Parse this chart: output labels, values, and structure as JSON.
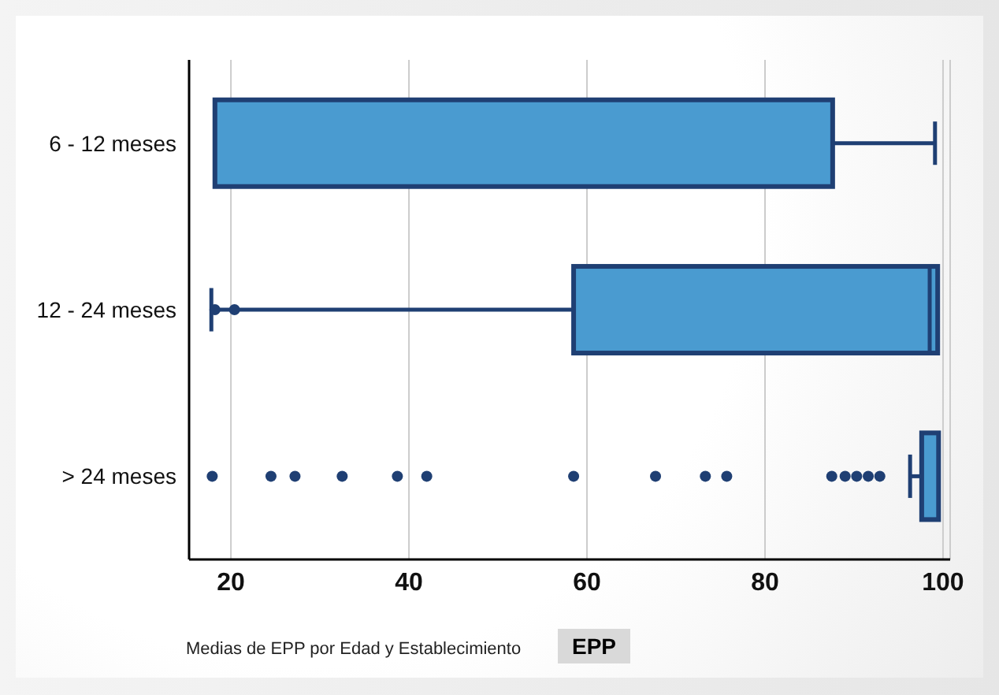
{
  "chart_data": {
    "type": "box",
    "orientation": "horizontal",
    "xlabel": "EPP",
    "categories": [
      "6 - 12 meses",
      "12 - 24 meses",
      "> 24 meses"
    ],
    "boxes": [
      {
        "low": 18.2,
        "q1": 18.2,
        "median": 18.2,
        "q3": 87.6,
        "high": 99.1
      },
      {
        "low": 17.8,
        "q1": 58.5,
        "median": 98.5,
        "q3": 99.4,
        "high": 99.4,
        "outliers": [
          18.2,
          20.4
        ]
      },
      {
        "low": 96.3,
        "q1": 97.6,
        "median": 97.6,
        "q3": 99.5,
        "high": 99.5,
        "outliers": [
          17.9,
          24.5,
          27.2,
          32.5,
          38.7,
          42.0,
          58.5,
          67.7,
          73.3,
          75.7,
          87.5,
          89.0,
          90.3,
          91.6,
          92.9
        ]
      }
    ],
    "color": "#4a9bd0",
    "xlim": [
      15.3,
      100.8
    ],
    "xticks": [
      20,
      40,
      60,
      80,
      100
    ],
    "grid": "x",
    "annotations": [
      "Medias de EPP por Edad y Establecimiento"
    ]
  }
}
